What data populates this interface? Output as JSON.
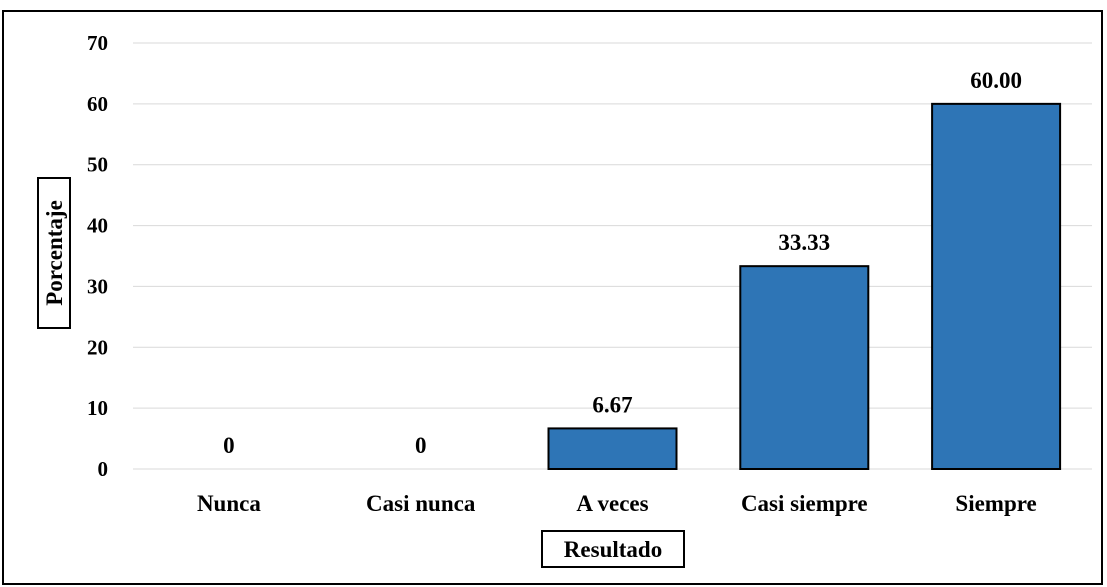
{
  "chart_data": {
    "type": "bar",
    "categories": [
      "Nunca",
      "Casi nunca",
      "A veces",
      "Casi siempre",
      "Siempre"
    ],
    "values": [
      0,
      0,
      6.67,
      33.33,
      60.0
    ],
    "data_labels": [
      "0",
      "0",
      "6.67",
      "33.33",
      "60.00"
    ],
    "xlabel": "Resultado",
    "ylabel": "Porcentaje",
    "ylim": [
      0,
      70
    ],
    "yticks": [
      "0",
      "10",
      "20",
      "30",
      "40",
      "50",
      "60",
      "70"
    ],
    "grid": true,
    "legend": "none",
    "bar_color": "#2e75b6"
  }
}
